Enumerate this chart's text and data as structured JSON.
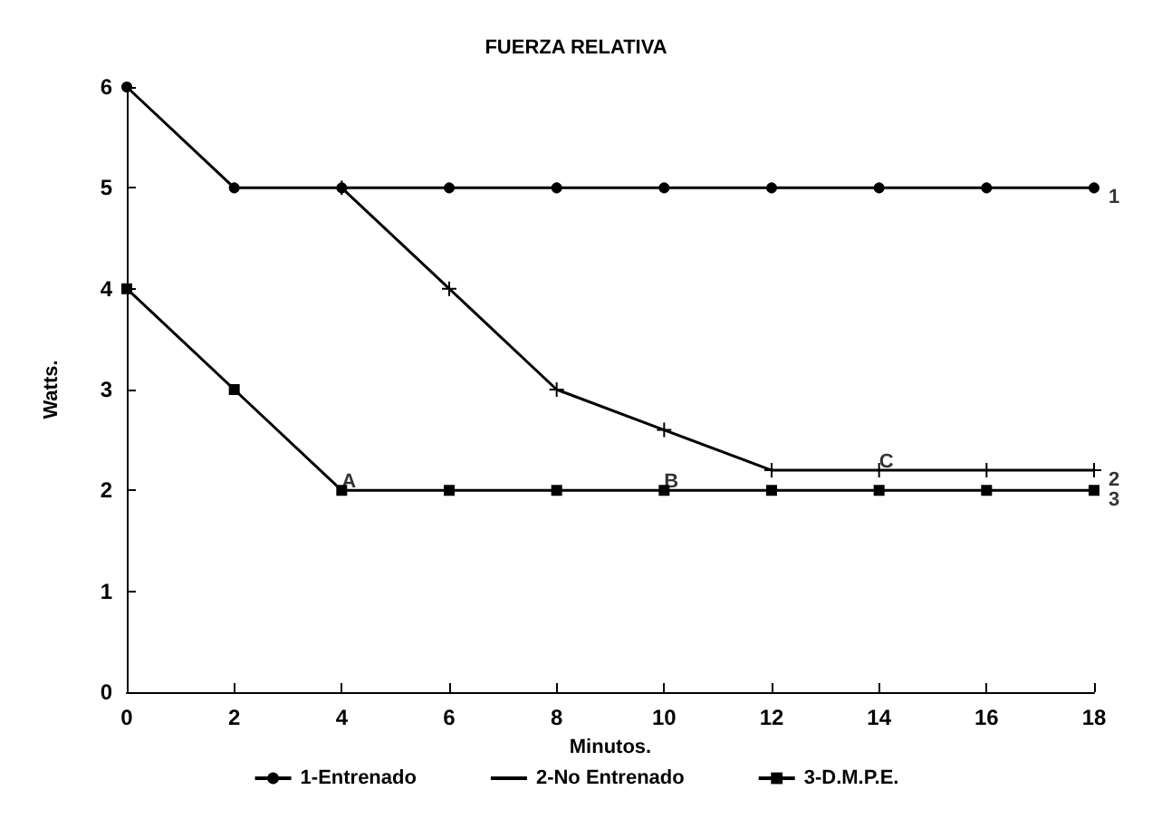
{
  "chart_data": {
    "type": "line",
    "title": "FUERZA RELATIVA",
    "xlabel": "Minutos.",
    "ylabel": "Watts.",
    "x": [
      0,
      2,
      4,
      6,
      8,
      10,
      12,
      14,
      16,
      18
    ],
    "series": [
      {
        "name": "1-Entrenado",
        "color": "#000000",
        "marker": "circle",
        "values": [
          6,
          5,
          5,
          5,
          5,
          5,
          5,
          5,
          5,
          5
        ]
      },
      {
        "name": "2-No Entrenado",
        "color": "#000000",
        "marker": "cross",
        "values": [
          null,
          null,
          5,
          4,
          3,
          2.6,
          2.2,
          2.2,
          2.2,
          2.2
        ]
      },
      {
        "name": "3-D.M.P.E.",
        "color": "#000000",
        "marker": "square",
        "values": [
          4,
          3,
          2,
          2,
          2,
          2,
          2,
          2,
          2,
          2
        ]
      }
    ],
    "annotations": [
      {
        "text": "A",
        "x": 4,
        "y": 2
      },
      {
        "text": "B",
        "x": 10,
        "y": 2
      },
      {
        "text": "C",
        "x": 14,
        "y": 2.2
      },
      {
        "text": "1",
        "x": 18,
        "y": 5
      },
      {
        "text": "2",
        "x": 18,
        "y": 2.2
      },
      {
        "text": "3",
        "x": 18,
        "y": 2
      }
    ],
    "xlim": [
      0,
      18
    ],
    "xticks": [
      0,
      2,
      4,
      6,
      8,
      10,
      12,
      14,
      16,
      18
    ],
    "ylim": [
      0,
      6
    ],
    "yticks": [
      0,
      1,
      2,
      3,
      4,
      5,
      6
    ],
    "grid": false,
    "legend": "bottom",
    "line_style": "solid"
  }
}
